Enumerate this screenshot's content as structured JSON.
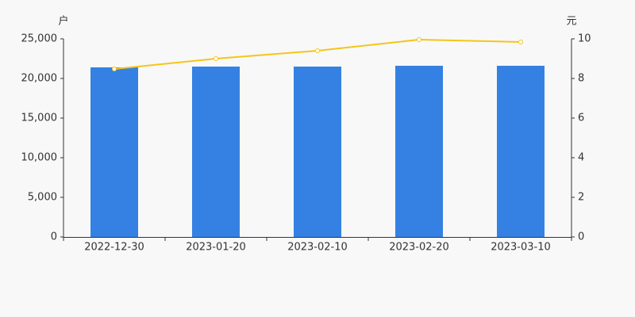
{
  "chart_data": {
    "type": "bar-line",
    "y_unit": "户",
    "y2_unit": "元",
    "categories": [
      "2022-12-30",
      "2023-01-20",
      "2023-02-10",
      "2023-02-20",
      "2023-03-10"
    ],
    "series": [
      {
        "type": "bar",
        "color": "#3481e3",
        "values": [
          21400,
          21500,
          21500,
          21600,
          21600
        ]
      },
      {
        "type": "line",
        "axis": "y2",
        "color": "#f5c518",
        "values": [
          8.48,
          9.0,
          9.4,
          9.96,
          9.84
        ]
      }
    ],
    "ylim": [
      0,
      25000
    ],
    "yticks": [
      0,
      {
        "value": 5000,
        "label": "5,000"
      },
      {
        "value": 10000,
        "label": "10,000"
      },
      {
        "value": 15000,
        "label": "15,000"
      },
      {
        "value": 20000,
        "label": "20,000"
      },
      {
        "value": 25000,
        "label": "25,000"
      }
    ],
    "y2lim": [
      0,
      10
    ],
    "y2ticks": [
      0,
      2,
      4,
      6,
      8,
      10
    ],
    "grid": false
  }
}
